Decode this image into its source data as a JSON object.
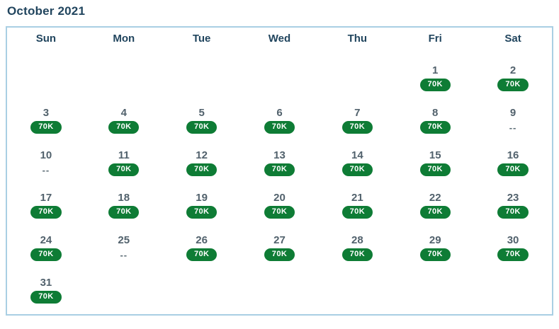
{
  "title": "October 2021",
  "weekdays": [
    "Sun",
    "Mon",
    "Tue",
    "Wed",
    "Thu",
    "Fri",
    "Sat"
  ],
  "colors": {
    "title_color": "#21455e",
    "header_color": "#21455e",
    "day_number_color": "#51616c",
    "badge_bg": "#0e7c35",
    "badge_text": "#ffffff",
    "border_color": "#a9cfe3",
    "dash_color": "#5b6b75",
    "page_bg": "#ffffff"
  },
  "weeks": [
    [
      null,
      null,
      null,
      null,
      null,
      {
        "day": 1,
        "status": "available",
        "label": "70K"
      },
      {
        "day": 2,
        "status": "available",
        "label": "70K"
      }
    ],
    [
      {
        "day": 3,
        "status": "available",
        "label": "70K"
      },
      {
        "day": 4,
        "status": "available",
        "label": "70K"
      },
      {
        "day": 5,
        "status": "available",
        "label": "70K"
      },
      {
        "day": 6,
        "status": "available",
        "label": "70K"
      },
      {
        "day": 7,
        "status": "available",
        "label": "70K"
      },
      {
        "day": 8,
        "status": "available",
        "label": "70K"
      },
      {
        "day": 9,
        "status": "unavailable",
        "label": "--"
      }
    ],
    [
      {
        "day": 10,
        "status": "unavailable",
        "label": "--"
      },
      {
        "day": 11,
        "status": "available",
        "label": "70K"
      },
      {
        "day": 12,
        "status": "available",
        "label": "70K"
      },
      {
        "day": 13,
        "status": "available",
        "label": "70K"
      },
      {
        "day": 14,
        "status": "available",
        "label": "70K"
      },
      {
        "day": 15,
        "status": "available",
        "label": "70K"
      },
      {
        "day": 16,
        "status": "available",
        "label": "70K"
      }
    ],
    [
      {
        "day": 17,
        "status": "available",
        "label": "70K"
      },
      {
        "day": 18,
        "status": "available",
        "label": "70K"
      },
      {
        "day": 19,
        "status": "available",
        "label": "70K"
      },
      {
        "day": 20,
        "status": "available",
        "label": "70K"
      },
      {
        "day": 21,
        "status": "available",
        "label": "70K"
      },
      {
        "day": 22,
        "status": "available",
        "label": "70K"
      },
      {
        "day": 23,
        "status": "available",
        "label": "70K"
      }
    ],
    [
      {
        "day": 24,
        "status": "available",
        "label": "70K"
      },
      {
        "day": 25,
        "status": "unavailable",
        "label": "--"
      },
      {
        "day": 26,
        "status": "available",
        "label": "70K"
      },
      {
        "day": 27,
        "status": "available",
        "label": "70K"
      },
      {
        "day": 28,
        "status": "available",
        "label": "70K"
      },
      {
        "day": 29,
        "status": "available",
        "label": "70K"
      },
      {
        "day": 30,
        "status": "available",
        "label": "70K"
      }
    ],
    [
      {
        "day": 31,
        "status": "available",
        "label": "70K"
      },
      null,
      null,
      null,
      null,
      null,
      null
    ]
  ]
}
